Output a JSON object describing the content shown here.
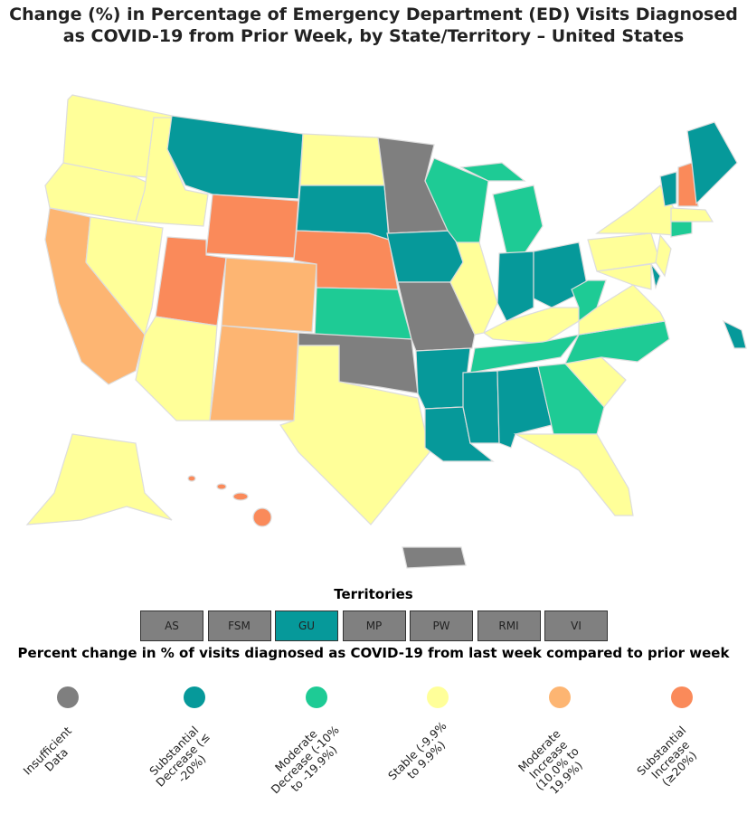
{
  "title": "Change (%) in Percentage of Emergency Department (ED) Visits Diagnosed as COVID-19 from Prior Week, by State/Territory – United States",
  "territories": {
    "title": "Territories",
    "items": [
      {
        "label": "AS",
        "color": "#808080"
      },
      {
        "label": "FSM",
        "color": "#808080"
      },
      {
        "label": "GU",
        "color": "#06999a"
      },
      {
        "label": "MP",
        "color": "#808080"
      },
      {
        "label": "PW",
        "color": "#808080"
      },
      {
        "label": "RMI",
        "color": "#808080"
      },
      {
        "label": "VI",
        "color": "#808080"
      }
    ]
  },
  "legend": {
    "title": "Percent change in % of visits diagnosed as COVID-19 from last week compared to prior week",
    "items": [
      {
        "label": "Insufficient Data",
        "color": "#7f7f7f"
      },
      {
        "label": "Substantial Decrease (≤ -20%)",
        "color": "#06999a"
      },
      {
        "label": "Moderate Decrease (-10% to -19.9%)",
        "color": "#1ecb95"
      },
      {
        "label": "Stable (-9.9% to 9.9%)",
        "color": "#ffff99"
      },
      {
        "label": "Moderate Increase (10.0% to 19.9%)",
        "color": "#fdb572"
      },
      {
        "label": "Substantial Increase (≥20%)",
        "color": "#fa8a5a"
      }
    ]
  }
}
